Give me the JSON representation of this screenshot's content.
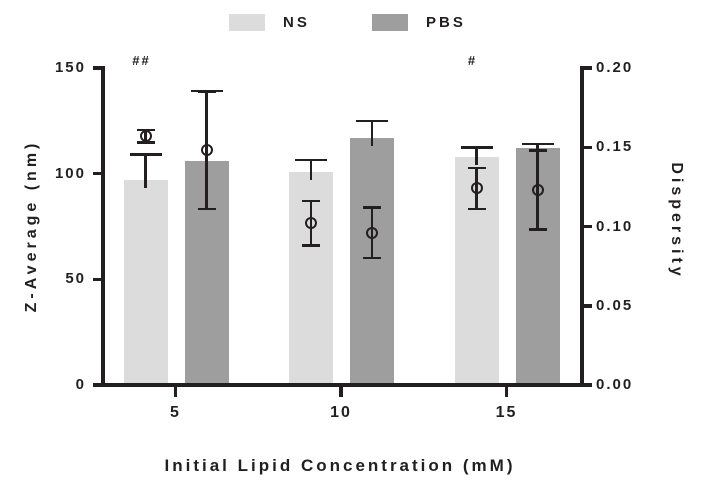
{
  "chart_data": {
    "type": "bar",
    "title": "",
    "xlabel": "Initial Lipid Concentration (mM)",
    "ylabel_left": "Z-Average (nm)",
    "ylabel_right": "Dispersity",
    "categories": [
      "5",
      "10",
      "15"
    ],
    "left_axis": {
      "tick_values": [
        0,
        50,
        100,
        150
      ],
      "tick_labels": [
        "0",
        "50",
        "100",
        "150"
      ],
      "range": [
        0,
        150
      ]
    },
    "right_axis": {
      "tick_values": [
        0,
        0.05,
        0.1,
        0.15,
        0.2
      ],
      "tick_labels": [
        "0.00",
        "0.05",
        "0.10",
        "0.15",
        "0.20"
      ],
      "range": [
        0,
        0.2
      ]
    },
    "series": [
      {
        "name": "NS",
        "color": "#dcdcdc",
        "bar_values_nm": [
          97,
          101,
          108
        ],
        "bar_sd_nm": [
          12,
          5.5,
          4.5
        ],
        "dispersity_values": [
          0.157,
          0.102,
          0.124
        ],
        "dispersity_sd": [
          0.004,
          0.014,
          0.013
        ]
      },
      {
        "name": "PBS",
        "color": "#9e9e9e",
        "bar_values_nm": [
          106,
          117,
          112
        ],
        "bar_sd_nm": [
          33,
          8,
          2
        ],
        "dispersity_values": [
          0.148,
          0.096,
          0.123
        ],
        "dispersity_sd": [
          0.037,
          0.016,
          0.025
        ]
      }
    ],
    "annotations": [
      {
        "text": "##",
        "category": "5",
        "series": "NS"
      },
      {
        "text": "#",
        "category": "15",
        "series": "NS"
      }
    ],
    "legend": {
      "position": "top"
    },
    "marker_style": "open-circle",
    "grid": false,
    "axis_color": "#231f20",
    "background_color": "#ffffff"
  }
}
